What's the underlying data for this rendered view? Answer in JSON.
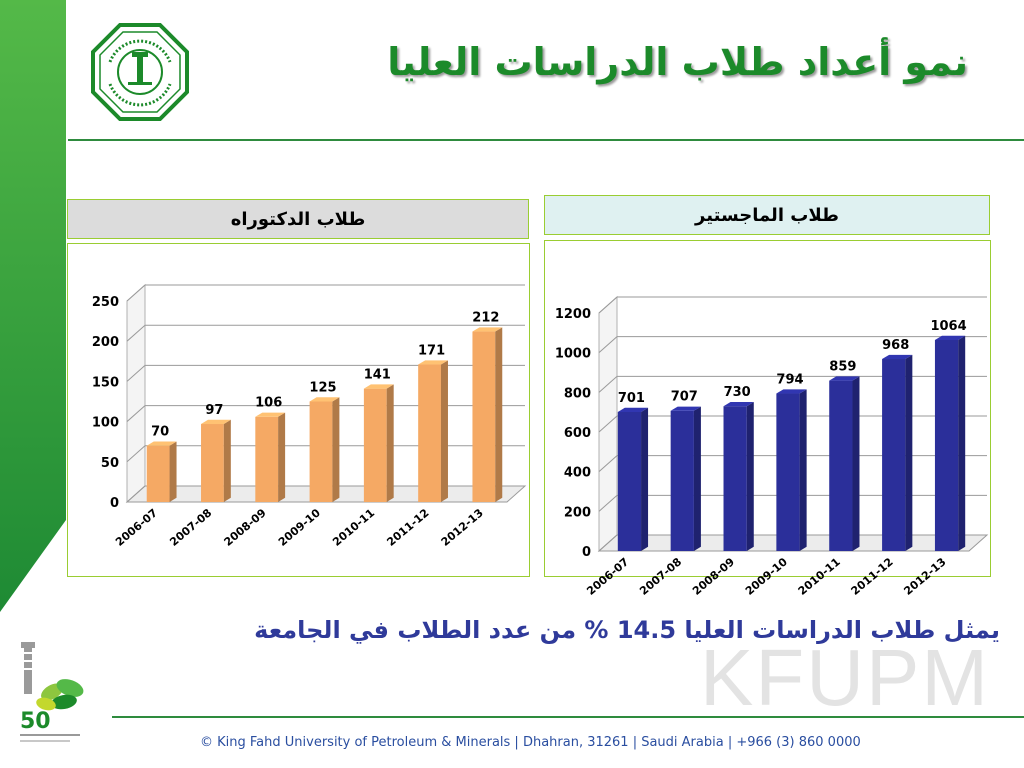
{
  "slide": {
    "title": "نمو أعداد طلاب الدراسات العليا",
    "summary": "يمثل طلاب الدراسات العليا 14.5 % من عدد الطلاب في الجامعة",
    "footer": "© King Fahd University of Petroleum & Minerals | Dhahran, 31261 | Saudi Arabia | +966 (3) 860 0000",
    "watermark": "KFUPM",
    "anniversary_number": "50",
    "colors": {
      "green": "#1c8a2a",
      "phd_bar": "#f5a964",
      "ms_bar": "#2b2f9a"
    }
  },
  "chart_data": [
    {
      "type": "bar",
      "title": "طلاب الدكتوراه",
      "categories": [
        "2006-07",
        "2007-08",
        "2008-09",
        "2009-10",
        "2010-11",
        "2011-12",
        "2012-13"
      ],
      "values": [
        70,
        97,
        106,
        125,
        141,
        171,
        212
      ],
      "yticks": [
        0,
        50,
        100,
        150,
        200,
        250
      ],
      "ylim": [
        0,
        250
      ],
      "xlabel": "",
      "ylabel": "",
      "grid": true,
      "color": "#f5a964"
    },
    {
      "type": "bar",
      "title": "طلاب الماجستير",
      "categories": [
        "2006-07",
        "2007-08",
        "2008-09",
        "2009-10",
        "2010-11",
        "2011-12",
        "2012-13"
      ],
      "values": [
        701,
        707,
        730,
        794,
        859,
        968,
        1064
      ],
      "yticks": [
        0,
        200,
        400,
        600,
        800,
        1000,
        1200
      ],
      "ylim": [
        0,
        1200
      ],
      "xlabel": "",
      "ylabel": "",
      "grid": true,
      "color": "#2b2f9a"
    }
  ]
}
